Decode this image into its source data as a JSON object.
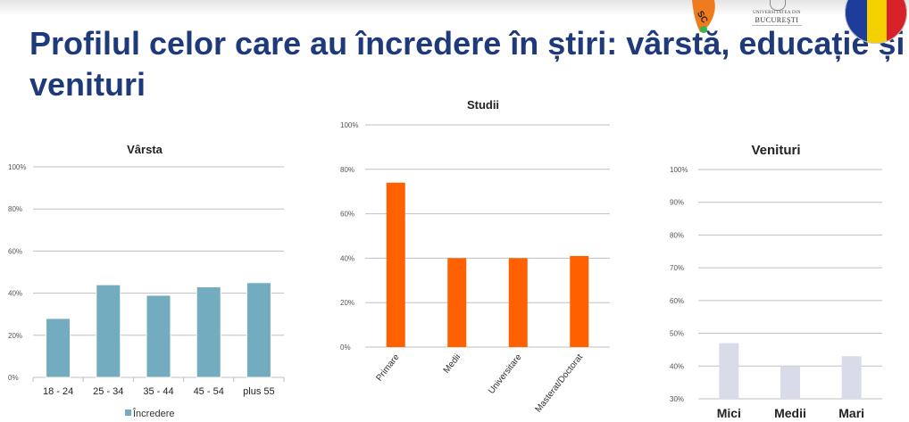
{
  "slide": {
    "title": "Profilul celor care au încredere în știri: vârstă, educație și venituri"
  },
  "logos": {
    "university": {
      "line1": "UNIVERSITATEA DIN",
      "line2": "BUCUREŞTI"
    },
    "badge_text": "SC"
  },
  "colors": {
    "title": "#1f3a7a",
    "varsta_bars": "#72acbe",
    "studii_bars": "#ff6000",
    "venituri_bars": "#d9dce8",
    "gridline": "#bfbfbf"
  },
  "chart_data": [
    {
      "id": "varsta",
      "type": "bar",
      "title": "Vârsta",
      "categories": [
        "18 - 24",
        "25 - 34",
        "35 - 44",
        "45 - 54",
        "plus 55"
      ],
      "series": [
        {
          "name": "Încredere",
          "values": [
            28,
            44,
            39,
            43,
            45
          ]
        }
      ],
      "ylim": [
        0,
        100
      ],
      "yticks": [
        "0%",
        "20%",
        "40%",
        "60%",
        "80%",
        "100%"
      ],
      "grid": true,
      "legend": "bottom"
    },
    {
      "id": "studii",
      "type": "bar",
      "title": "Studii",
      "categories": [
        "Primare",
        "Medii",
        "Universitare",
        "Masterat/Doctorat"
      ],
      "series": [
        {
          "values": [
            74,
            40,
            40,
            41
          ]
        }
      ],
      "ylim": [
        0,
        100
      ],
      "yticks": [
        "0%",
        "20%",
        "40%",
        "60%",
        "80%",
        "100%"
      ],
      "grid": true,
      "category_labels_rotated": true
    },
    {
      "id": "venituri",
      "type": "bar",
      "title": "Venituri",
      "categories": [
        "Mici",
        "Medii",
        "Mari"
      ],
      "series": [
        {
          "values": [
            47,
            40,
            43
          ]
        }
      ],
      "ylim": [
        30,
        100
      ],
      "yticks": [
        "30%",
        "40%",
        "50%",
        "60%",
        "70%",
        "80%",
        "90%",
        "100%"
      ],
      "grid": true
    }
  ]
}
